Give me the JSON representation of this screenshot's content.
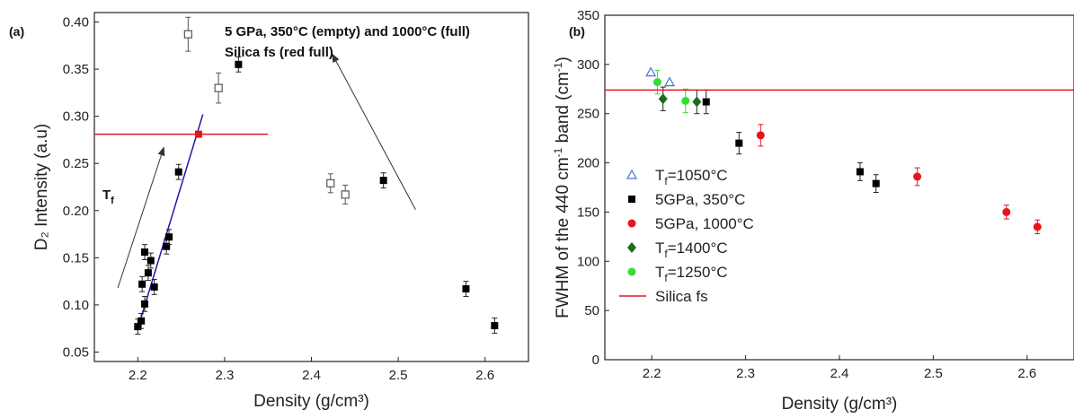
{
  "chart_data": [
    {
      "type": "scatter",
      "panel_label": "(a)",
      "annotation_lines": [
        "5 GPa, 350°C (empty) and 1000°C (full)",
        "Silica fs (red full)"
      ],
      "xlabel": "Density  (g/cm³)",
      "ylabel": "D₂ Intensity (a.u)",
      "xlim": [
        2.15,
        2.65
      ],
      "ylim": [
        0.04,
        0.41
      ],
      "xticks": [
        "2.2",
        "2.3",
        "2.4",
        "2.5",
        "2.6"
      ],
      "yticks": [
        "0.05",
        "0.10",
        "0.15",
        "0.20",
        "0.25",
        "0.30",
        "0.35",
        "0.40"
      ],
      "tf_label": "T",
      "tf_sub": "f",
      "series": [
        {
          "marker": "filled-square",
          "color": "#000000",
          "points": [
            {
              "x": 2.2,
              "y": 0.077,
              "err": 0.008
            },
            {
              "x": 2.204,
              "y": 0.083,
              "err": 0.008
            },
            {
              "x": 2.205,
              "y": 0.122,
              "err": 0.008
            },
            {
              "x": 2.208,
              "y": 0.156,
              "err": 0.008
            },
            {
              "x": 2.208,
              "y": 0.101,
              "err": 0.008
            },
            {
              "x": 2.212,
              "y": 0.134,
              "err": 0.008
            },
            {
              "x": 2.215,
              "y": 0.147,
              "err": 0.008
            },
            {
              "x": 2.219,
              "y": 0.119,
              "err": 0.008
            },
            {
              "x": 2.233,
              "y": 0.162,
              "err": 0.008
            },
            {
              "x": 2.236,
              "y": 0.172,
              "err": 0.008
            },
            {
              "x": 2.247,
              "y": 0.241,
              "err": 0.008
            },
            {
              "x": 2.316,
              "y": 0.355,
              "err": 0.008
            },
            {
              "x": 2.483,
              "y": 0.232,
              "err": 0.008
            },
            {
              "x": 2.578,
              "y": 0.117,
              "err": 0.008
            },
            {
              "x": 2.611,
              "y": 0.078,
              "err": 0.008
            }
          ]
        },
        {
          "marker": "open-square",
          "color": "#555555",
          "points": [
            {
              "x": 2.258,
              "y": 0.387,
              "err": 0.018
            },
            {
              "x": 2.293,
              "y": 0.33,
              "err": 0.016
            },
            {
              "x": 2.422,
              "y": 0.229,
              "err": 0.01
            },
            {
              "x": 2.439,
              "y": 0.217,
              "err": 0.01
            }
          ]
        },
        {
          "marker": "filled-square",
          "color": "#e8141c",
          "points": [
            {
              "x": 2.27,
              "y": 0.281
            }
          ]
        }
      ],
      "hline": {
        "y": 0.281,
        "x_from": 2.15,
        "x_to": 2.35,
        "color": "#e8141c"
      },
      "fit_line": {
        "x1": 2.2,
        "y1": 0.075,
        "x2": 2.275,
        "y2": 0.302,
        "color": "#1a1aa8"
      },
      "arrows": [
        {
          "x1": 2.177,
          "y1": 0.118,
          "x2": 2.23,
          "y2": 0.267
        },
        {
          "x1": 2.52,
          "y1": 0.201,
          "x2": 2.424,
          "y2": 0.366
        }
      ]
    },
    {
      "type": "scatter",
      "panel_label": "(b)",
      "xlabel": "Density (g/cm³)",
      "ylabel_parts": {
        "pre": "FWHM of the 440 cm",
        "sup1": "-1",
        "mid": " band (cm",
        "sup2": "-1",
        "post": ")"
      },
      "xlim": [
        2.15,
        2.65
      ],
      "ylim": [
        0,
        350
      ],
      "xticks": [
        "2.2",
        "2.3",
        "2.4",
        "2.5",
        "2.6"
      ],
      "yticks": [
        "0",
        "50",
        "100",
        "150",
        "200",
        "250",
        "300",
        "350"
      ],
      "series": [
        {
          "name_main": "T",
          "name_sub": "f",
          "name_rest": "=1050°C",
          "marker": "open-triangle",
          "color": "#4a6fd8",
          "points": [
            {
              "x": 2.199,
              "y": 292
            },
            {
              "x": 2.219,
              "y": 282
            }
          ]
        },
        {
          "name_main": "5GPa, 350°C",
          "name_sub": "",
          "name_rest": "",
          "marker": "filled-square",
          "color": "#000000",
          "points": [
            {
              "x": 2.258,
              "y": 262,
              "err": 12
            },
            {
              "x": 2.293,
              "y": 220,
              "err": 11
            },
            {
              "x": 2.422,
              "y": 191,
              "err": 9
            },
            {
              "x": 2.439,
              "y": 179,
              "err": 9
            }
          ]
        },
        {
          "name_main": "5GPa, 1000°C",
          "name_sub": "",
          "name_rest": "",
          "marker": "filled-circle",
          "color": "#e8141c",
          "points": [
            {
              "x": 2.316,
              "y": 228,
              "err": 11
            },
            {
              "x": 2.483,
              "y": 186,
              "err": 9
            },
            {
              "x": 2.578,
              "y": 150,
              "err": 7
            },
            {
              "x": 2.611,
              "y": 135,
              "err": 7
            }
          ]
        },
        {
          "name_main": "T",
          "name_sub": "f",
          "name_rest": "=1400°C",
          "marker": "filled-diamond",
          "color": "#1e6b1e",
          "points": [
            {
              "x": 2.212,
              "y": 265,
              "err": 12
            },
            {
              "x": 2.248,
              "y": 262,
              "err": 12
            }
          ]
        },
        {
          "name_main": "T",
          "name_sub": "f",
          "name_rest": "=1250°C",
          "marker": "filled-circle",
          "color": "#33dd33",
          "points": [
            {
              "x": 2.206,
              "y": 282,
              "err": 12
            },
            {
              "x": 2.236,
              "y": 263,
              "err": 12
            }
          ]
        },
        {
          "name_main": "Silica fs",
          "name_sub": "",
          "name_rest": "",
          "marker": "line",
          "color": "#e8141c",
          "hline_y": 274
        }
      ]
    }
  ]
}
